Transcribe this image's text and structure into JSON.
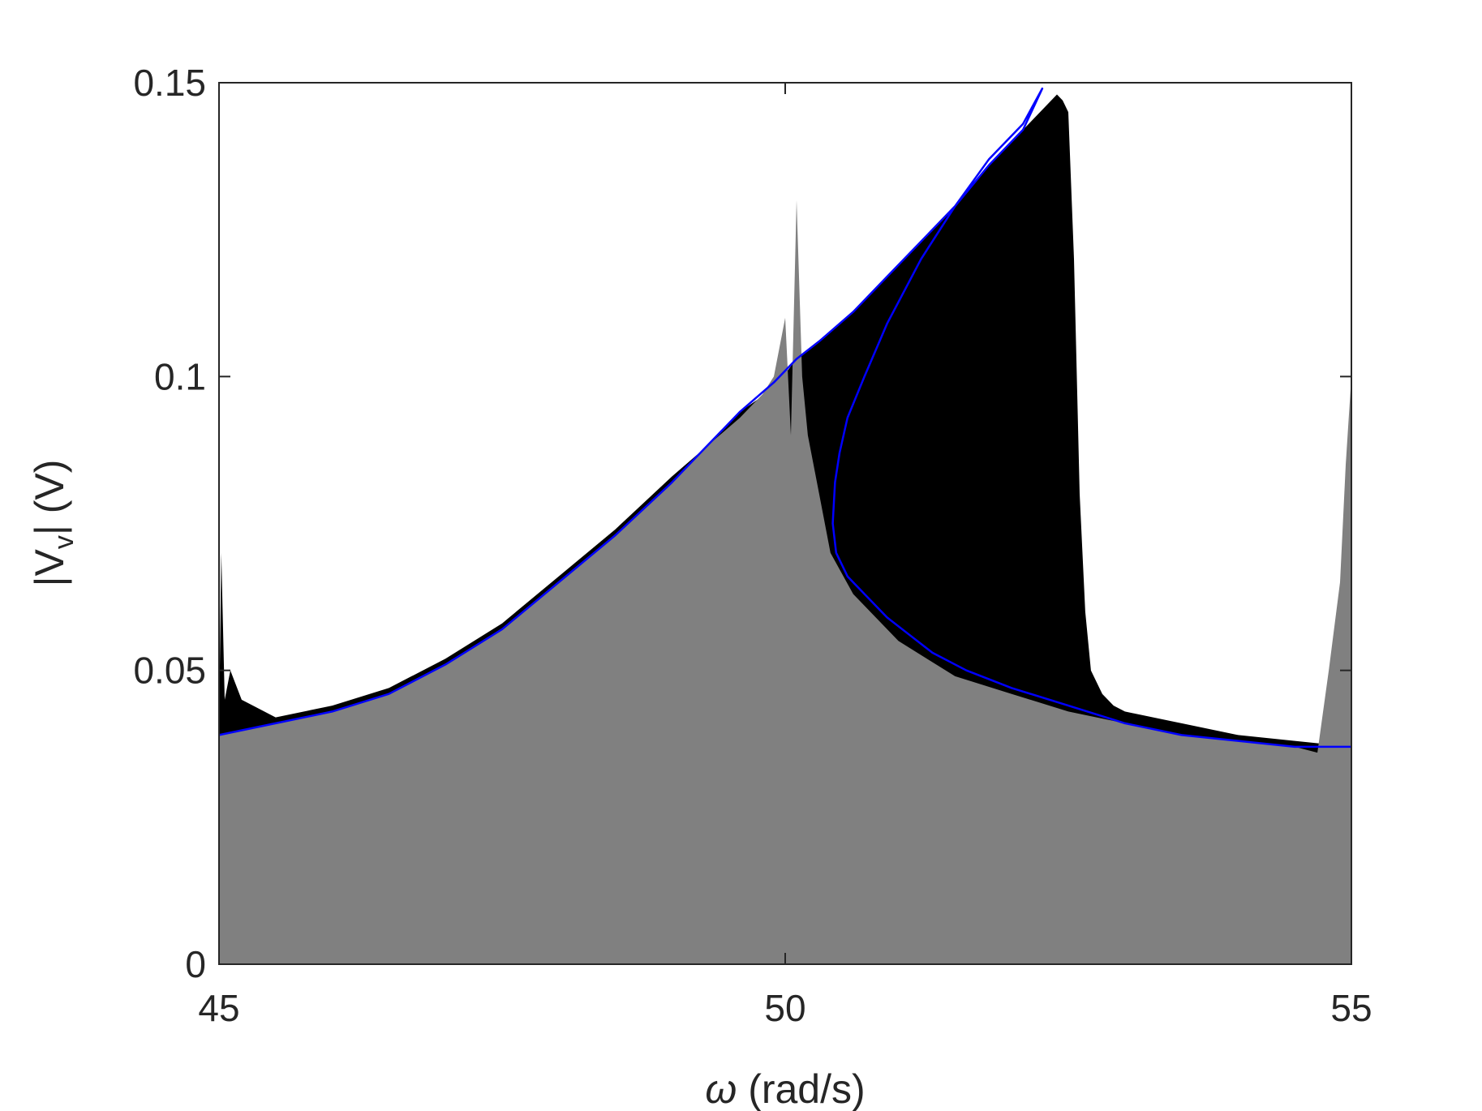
{
  "chart_data": {
    "type": "area",
    "xlabel": {
      "symbol": "ω",
      "rest": " (rad/s)"
    },
    "ylabel": {
      "prefix": "|V",
      "subscript": "v",
      "suffix": "| (V)"
    },
    "xlim": [
      45,
      55
    ],
    "ylim": [
      0,
      0.15
    ],
    "xticks": [
      45,
      50,
      55
    ],
    "xtick_labels": [
      "45",
      "50",
      "55"
    ],
    "yticks": [
      0,
      0.05,
      0.1,
      0.15
    ],
    "ytick_labels": [
      "0",
      "0.05",
      "0.1",
      "0.15"
    ],
    "grid": false,
    "series": [
      {
        "style": "filled",
        "color": "#000000",
        "x": [
          45.0,
          45.02,
          45.05,
          45.1,
          45.2,
          45.3,
          45.5,
          46.0,
          46.5,
          47.0,
          47.5,
          48.0,
          48.5,
          49.0,
          49.3,
          49.6,
          49.9,
          50.1,
          50.3,
          50.6,
          50.9,
          51.2,
          51.5,
          51.8,
          52.1,
          52.3,
          52.4,
          52.45,
          52.5,
          52.55,
          52.6,
          52.65,
          52.7,
          52.8,
          52.9,
          53.0,
          53.5,
          54.0,
          54.5,
          55.0
        ],
        "y": [
          0.04,
          0.07,
          0.045,
          0.05,
          0.045,
          0.044,
          0.042,
          0.044,
          0.047,
          0.052,
          0.058,
          0.066,
          0.074,
          0.083,
          0.088,
          0.094,
          0.098,
          0.103,
          0.106,
          0.111,
          0.117,
          0.123,
          0.129,
          0.136,
          0.142,
          0.146,
          0.148,
          0.147,
          0.145,
          0.12,
          0.08,
          0.06,
          0.05,
          0.046,
          0.044,
          0.043,
          0.041,
          0.039,
          0.038,
          0.037
        ]
      },
      {
        "style": "filled",
        "color": "#808080",
        "x": [
          45.0,
          45.5,
          46.0,
          46.5,
          47.0,
          47.5,
          48.0,
          48.5,
          49.0,
          49.3,
          49.6,
          49.8,
          49.9,
          50.0,
          50.05,
          50.1,
          50.15,
          50.2,
          50.25,
          50.3,
          50.4,
          50.6,
          51.0,
          51.5,
          52.0,
          52.5,
          53.0,
          53.5,
          54.0,
          54.5,
          54.7,
          54.8,
          54.9,
          54.95,
          55.0
        ],
        "y": [
          0.039,
          0.041,
          0.043,
          0.046,
          0.051,
          0.057,
          0.065,
          0.073,
          0.082,
          0.088,
          0.093,
          0.097,
          0.1,
          0.11,
          0.09,
          0.13,
          0.1,
          0.09,
          0.085,
          0.08,
          0.07,
          0.063,
          0.055,
          0.049,
          0.046,
          0.043,
          0.041,
          0.039,
          0.038,
          0.037,
          0.036,
          0.05,
          0.065,
          0.085,
          0.1
        ]
      },
      {
        "style": "line",
        "color": "#0000ff",
        "x": [
          45.0,
          45.5,
          46.0,
          46.5,
          47.0,
          47.5,
          48.0,
          48.5,
          49.0,
          49.3,
          49.6,
          49.9,
          50.1,
          50.3,
          50.6,
          50.9,
          51.2,
          51.5,
          51.8,
          52.1,
          52.27,
          52.1,
          51.8,
          51.5,
          51.2,
          50.9,
          50.7,
          50.55,
          50.48,
          50.44,
          50.42,
          50.45,
          50.55,
          50.7,
          50.9,
          51.1,
          51.3,
          51.6,
          52.0,
          52.5,
          53.0,
          53.5,
          54.0,
          54.5,
          55.0
        ],
        "y": [
          0.039,
          0.041,
          0.043,
          0.046,
          0.051,
          0.057,
          0.065,
          0.073,
          0.082,
          0.088,
          0.094,
          0.099,
          0.103,
          0.106,
          0.111,
          0.117,
          0.123,
          0.129,
          0.136,
          0.142,
          0.149,
          0.143,
          0.137,
          0.129,
          0.12,
          0.109,
          0.1,
          0.093,
          0.087,
          0.082,
          0.075,
          0.07,
          0.066,
          0.063,
          0.059,
          0.056,
          0.053,
          0.05,
          0.047,
          0.044,
          0.041,
          0.039,
          0.038,
          0.037,
          0.037
        ]
      }
    ]
  }
}
